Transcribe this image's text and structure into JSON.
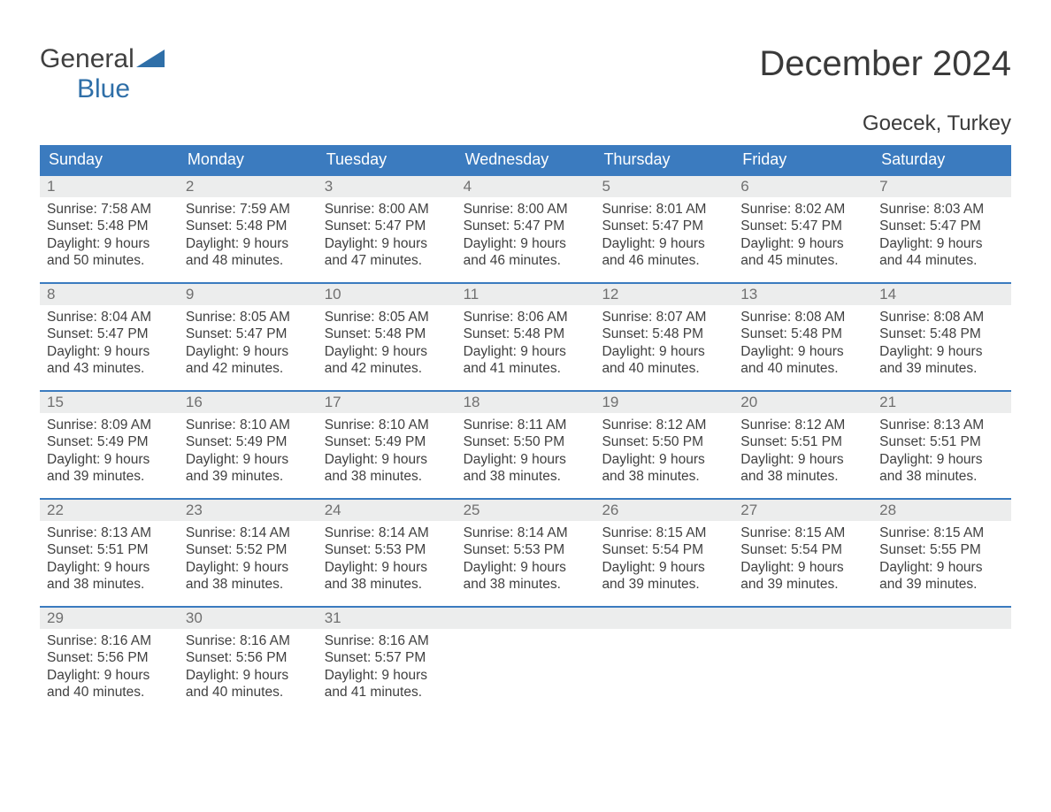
{
  "brand": {
    "part1": "General",
    "part2": "Blue"
  },
  "title": "December 2024",
  "location": "Goecek, Turkey",
  "colors": {
    "header_bg": "#3b7bbf",
    "header_text": "#ffffff",
    "daynum_bg": "#eceded",
    "daynum_text": "#707070",
    "body_text": "#404040",
    "brand_blue": "#2f6fa8"
  },
  "fonts": {
    "title_size": 40,
    "location_size": 24,
    "dow_size": 18,
    "daynum_size": 17,
    "body_size": 15.5
  },
  "days_of_week": [
    "Sunday",
    "Monday",
    "Tuesday",
    "Wednesday",
    "Thursday",
    "Friday",
    "Saturday"
  ],
  "weeks": [
    [
      {
        "n": "1",
        "sunrise": "Sunrise: 7:58 AM",
        "sunset": "Sunset: 5:48 PM",
        "d1": "Daylight: 9 hours",
        "d2": "and 50 minutes."
      },
      {
        "n": "2",
        "sunrise": "Sunrise: 7:59 AM",
        "sunset": "Sunset: 5:48 PM",
        "d1": "Daylight: 9 hours",
        "d2": "and 48 minutes."
      },
      {
        "n": "3",
        "sunrise": "Sunrise: 8:00 AM",
        "sunset": "Sunset: 5:47 PM",
        "d1": "Daylight: 9 hours",
        "d2": "and 47 minutes."
      },
      {
        "n": "4",
        "sunrise": "Sunrise: 8:00 AM",
        "sunset": "Sunset: 5:47 PM",
        "d1": "Daylight: 9 hours",
        "d2": "and 46 minutes."
      },
      {
        "n": "5",
        "sunrise": "Sunrise: 8:01 AM",
        "sunset": "Sunset: 5:47 PM",
        "d1": "Daylight: 9 hours",
        "d2": "and 46 minutes."
      },
      {
        "n": "6",
        "sunrise": "Sunrise: 8:02 AM",
        "sunset": "Sunset: 5:47 PM",
        "d1": "Daylight: 9 hours",
        "d2": "and 45 minutes."
      },
      {
        "n": "7",
        "sunrise": "Sunrise: 8:03 AM",
        "sunset": "Sunset: 5:47 PM",
        "d1": "Daylight: 9 hours",
        "d2": "and 44 minutes."
      }
    ],
    [
      {
        "n": "8",
        "sunrise": "Sunrise: 8:04 AM",
        "sunset": "Sunset: 5:47 PM",
        "d1": "Daylight: 9 hours",
        "d2": "and 43 minutes."
      },
      {
        "n": "9",
        "sunrise": "Sunrise: 8:05 AM",
        "sunset": "Sunset: 5:47 PM",
        "d1": "Daylight: 9 hours",
        "d2": "and 42 minutes."
      },
      {
        "n": "10",
        "sunrise": "Sunrise: 8:05 AM",
        "sunset": "Sunset: 5:48 PM",
        "d1": "Daylight: 9 hours",
        "d2": "and 42 minutes."
      },
      {
        "n": "11",
        "sunrise": "Sunrise: 8:06 AM",
        "sunset": "Sunset: 5:48 PM",
        "d1": "Daylight: 9 hours",
        "d2": "and 41 minutes."
      },
      {
        "n": "12",
        "sunrise": "Sunrise: 8:07 AM",
        "sunset": "Sunset: 5:48 PM",
        "d1": "Daylight: 9 hours",
        "d2": "and 40 minutes."
      },
      {
        "n": "13",
        "sunrise": "Sunrise: 8:08 AM",
        "sunset": "Sunset: 5:48 PM",
        "d1": "Daylight: 9 hours",
        "d2": "and 40 minutes."
      },
      {
        "n": "14",
        "sunrise": "Sunrise: 8:08 AM",
        "sunset": "Sunset: 5:48 PM",
        "d1": "Daylight: 9 hours",
        "d2": "and 39 minutes."
      }
    ],
    [
      {
        "n": "15",
        "sunrise": "Sunrise: 8:09 AM",
        "sunset": "Sunset: 5:49 PM",
        "d1": "Daylight: 9 hours",
        "d2": "and 39 minutes."
      },
      {
        "n": "16",
        "sunrise": "Sunrise: 8:10 AM",
        "sunset": "Sunset: 5:49 PM",
        "d1": "Daylight: 9 hours",
        "d2": "and 39 minutes."
      },
      {
        "n": "17",
        "sunrise": "Sunrise: 8:10 AM",
        "sunset": "Sunset: 5:49 PM",
        "d1": "Daylight: 9 hours",
        "d2": "and 38 minutes."
      },
      {
        "n": "18",
        "sunrise": "Sunrise: 8:11 AM",
        "sunset": "Sunset: 5:50 PM",
        "d1": "Daylight: 9 hours",
        "d2": "and 38 minutes."
      },
      {
        "n": "19",
        "sunrise": "Sunrise: 8:12 AM",
        "sunset": "Sunset: 5:50 PM",
        "d1": "Daylight: 9 hours",
        "d2": "and 38 minutes."
      },
      {
        "n": "20",
        "sunrise": "Sunrise: 8:12 AM",
        "sunset": "Sunset: 5:51 PM",
        "d1": "Daylight: 9 hours",
        "d2": "and 38 minutes."
      },
      {
        "n": "21",
        "sunrise": "Sunrise: 8:13 AM",
        "sunset": "Sunset: 5:51 PM",
        "d1": "Daylight: 9 hours",
        "d2": "and 38 minutes."
      }
    ],
    [
      {
        "n": "22",
        "sunrise": "Sunrise: 8:13 AM",
        "sunset": "Sunset: 5:51 PM",
        "d1": "Daylight: 9 hours",
        "d2": "and 38 minutes."
      },
      {
        "n": "23",
        "sunrise": "Sunrise: 8:14 AM",
        "sunset": "Sunset: 5:52 PM",
        "d1": "Daylight: 9 hours",
        "d2": "and 38 minutes."
      },
      {
        "n": "24",
        "sunrise": "Sunrise: 8:14 AM",
        "sunset": "Sunset: 5:53 PM",
        "d1": "Daylight: 9 hours",
        "d2": "and 38 minutes."
      },
      {
        "n": "25",
        "sunrise": "Sunrise: 8:14 AM",
        "sunset": "Sunset: 5:53 PM",
        "d1": "Daylight: 9 hours",
        "d2": "and 38 minutes."
      },
      {
        "n": "26",
        "sunrise": "Sunrise: 8:15 AM",
        "sunset": "Sunset: 5:54 PM",
        "d1": "Daylight: 9 hours",
        "d2": "and 39 minutes."
      },
      {
        "n": "27",
        "sunrise": "Sunrise: 8:15 AM",
        "sunset": "Sunset: 5:54 PM",
        "d1": "Daylight: 9 hours",
        "d2": "and 39 minutes."
      },
      {
        "n": "28",
        "sunrise": "Sunrise: 8:15 AM",
        "sunset": "Sunset: 5:55 PM",
        "d1": "Daylight: 9 hours",
        "d2": "and 39 minutes."
      }
    ],
    [
      {
        "n": "29",
        "sunrise": "Sunrise: 8:16 AM",
        "sunset": "Sunset: 5:56 PM",
        "d1": "Daylight: 9 hours",
        "d2": "and 40 minutes."
      },
      {
        "n": "30",
        "sunrise": "Sunrise: 8:16 AM",
        "sunset": "Sunset: 5:56 PM",
        "d1": "Daylight: 9 hours",
        "d2": "and 40 minutes."
      },
      {
        "n": "31",
        "sunrise": "Sunrise: 8:16 AM",
        "sunset": "Sunset: 5:57 PM",
        "d1": "Daylight: 9 hours",
        "d2": "and 41 minutes."
      },
      null,
      null,
      null,
      null
    ]
  ]
}
